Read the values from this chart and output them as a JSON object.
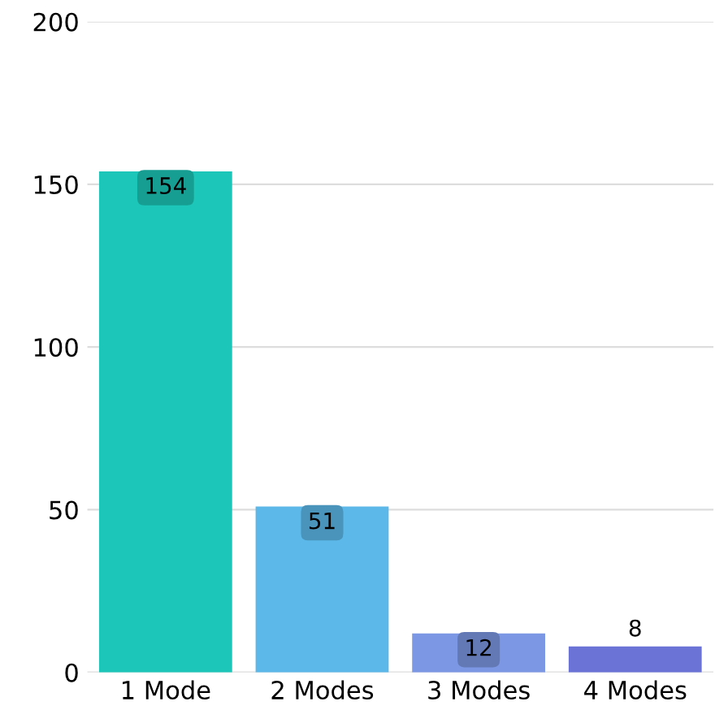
{
  "chart_data": {
    "type": "bar",
    "categories": [
      "1 Mode",
      "2 Modes",
      "3 Modes",
      "4 Modes"
    ],
    "values": [
      154,
      51,
      12,
      8
    ],
    "colors": [
      "#1cc6b8",
      "#5cb8e8",
      "#7c97e4",
      "#6b73d6"
    ],
    "ylim": [
      0,
      200
    ],
    "yticks": [
      0,
      50,
      100,
      150,
      200
    ],
    "grid": "y",
    "data_labels": true
  }
}
